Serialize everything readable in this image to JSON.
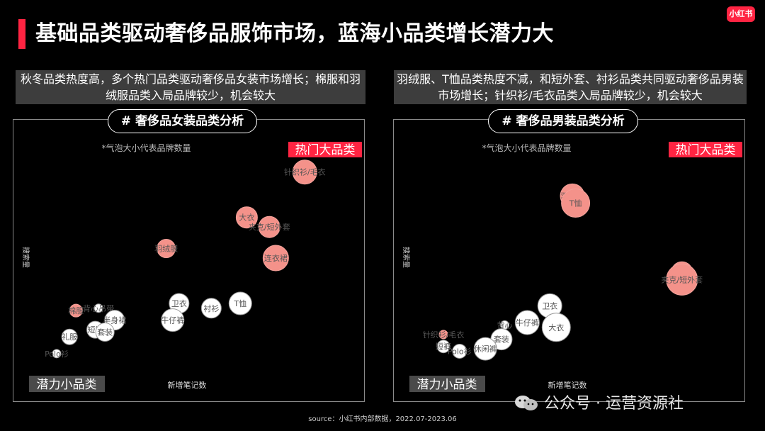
{
  "header": {
    "title": "基础品类驱动奢侈品服饰市场，蓝海小品类增长潜力大",
    "logo_text": "小红书"
  },
  "left": {
    "description": "秋冬品类热度高，多个热门品类驱动奢侈品女装市场增长；棉服和羽绒服品类入局品牌较少，机会较大",
    "pill": "# 奢侈品女装品类分析"
  },
  "right": {
    "description": "羽绒服、T恤品类热度不减，和短外套、衬衫品类共同驱动奢侈品男装市场增长；针织衫/毛衣品类入局品牌较少，机会较大",
    "pill": "# 奢侈品男装品类分析"
  },
  "footer": {
    "source": "source：小红书内部数据，2022.07-2023.06",
    "watermark": "公众号 · 运营资源社"
  },
  "colors": {
    "accent": "#ff2442",
    "hot_bubble": "#f4928a",
    "normal_bubble": "#ffffff",
    "label_box": "#4a4a4a"
  },
  "chart_data": [
    {
      "type": "scatter",
      "title": "# 奢侈品女装品类分析",
      "note": "*气泡大小代表品牌数量",
      "xlabel": "新增笔记数",
      "ylabel": "搜索量",
      "hot_label": "热门大品类",
      "potential_label": "潜力小品类",
      "xlim": [
        0,
        100
      ],
      "ylim": [
        0,
        100
      ],
      "points": [
        {
          "name": "针织衫/毛衣",
          "x": 86,
          "y": 90,
          "size": 17,
          "hot": true
        },
        {
          "name": "大衣",
          "x": 68,
          "y": 71,
          "size": 15,
          "hot": true
        },
        {
          "name": "夹克/短外套",
          "x": 75,
          "y": 67,
          "size": 15,
          "hot": true
        },
        {
          "name": "连衣裙",
          "x": 77,
          "y": 54,
          "size": 18,
          "hot": true
        },
        {
          "name": "羽绒服",
          "x": 43,
          "y": 58,
          "size": 13,
          "hot": true
        },
        {
          "name": "棉服",
          "x": 15,
          "y": 32,
          "size": 9,
          "hot": true
        },
        {
          "name": "卫衣",
          "x": 47,
          "y": 35,
          "size": 14,
          "hot": false
        },
        {
          "name": "T恤",
          "x": 66,
          "y": 35,
          "size": 16,
          "hot": false
        },
        {
          "name": "衬衫",
          "x": 57,
          "y": 33,
          "size": 14,
          "hot": false
        },
        {
          "name": "牛仔裤",
          "x": 45,
          "y": 28,
          "size": 16,
          "hot": false
        },
        {
          "name": "背心吊带",
          "x": 22,
          "y": 33,
          "size": 6,
          "hot": false
        },
        {
          "name": "半身裙",
          "x": 27,
          "y": 28,
          "size": 14,
          "hot": false
        },
        {
          "name": "短裤",
          "x": 21,
          "y": 24,
          "size": 12,
          "hot": false
        },
        {
          "name": "套装",
          "x": 24,
          "y": 23,
          "size": 13,
          "hot": false
        },
        {
          "name": "礼服",
          "x": 13,
          "y": 21,
          "size": 11,
          "hot": false
        },
        {
          "name": "Polo衫",
          "x": 9,
          "y": 14,
          "size": 6,
          "hot": false
        }
      ]
    },
    {
      "type": "scatter",
      "title": "# 奢侈品男装品类分析",
      "note": "*气泡大小代表品牌数量",
      "xlabel": "新增笔记数",
      "ylabel": "搜索量",
      "hot_label": "热门大品类",
      "potential_label": "潜力小品类",
      "xlim": [
        0,
        100
      ],
      "ylim": [
        0,
        100
      ],
      "points": [
        {
          "name": "羽绒服",
          "x": 51,
          "y": 80,
          "size": 17,
          "hot": true
        },
        {
          "name": "T恤",
          "x": 52,
          "y": 77,
          "size": 20,
          "hot": true
        },
        {
          "name": "衬衫",
          "x": 85,
          "y": 48,
          "size": 15,
          "hot": true
        },
        {
          "name": "夹克/短外套",
          "x": 85,
          "y": 45,
          "size": 22,
          "hot": true
        },
        {
          "name": "针织衫/毛衣",
          "x": 11,
          "y": 22,
          "size": 6,
          "hot": true
        },
        {
          "name": "卫衣",
          "x": 44,
          "y": 34,
          "size": 17,
          "hot": false
        },
        {
          "name": "大衣",
          "x": 46,
          "y": 25,
          "size": 20,
          "hot": false
        },
        {
          "name": "牛仔裤",
          "x": 37,
          "y": 27,
          "size": 17,
          "hot": false
        },
        {
          "name": "背心",
          "x": 30,
          "y": 26,
          "size": 6,
          "hot": false
        },
        {
          "name": "套装",
          "x": 29,
          "y": 20,
          "size": 15,
          "hot": false
        },
        {
          "name": "休闲裤",
          "x": 24,
          "y": 16,
          "size": 16,
          "hot": false
        },
        {
          "name": "短裤",
          "x": 11,
          "y": 17,
          "size": 9,
          "hot": false
        },
        {
          "name": "Polo衫",
          "x": 16,
          "y": 15,
          "size": 10,
          "hot": false
        }
      ]
    }
  ]
}
